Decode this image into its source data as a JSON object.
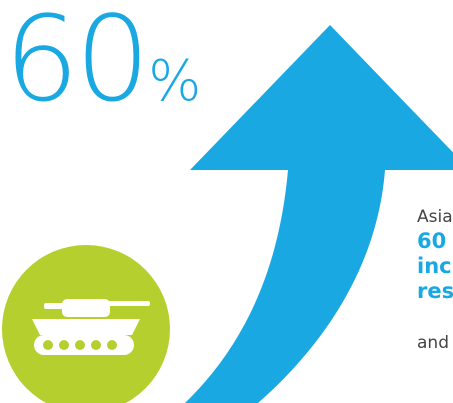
{
  "stat": {
    "number": "60",
    "percent": "%"
  },
  "snippet": {
    "lead": "Asia",
    "highlight_lines": [
      "60",
      "inc",
      "res"
    ],
    "tail": "and"
  },
  "icons": {
    "arrow": "up-arrow-icon",
    "badge": "tank-icon"
  },
  "colors": {
    "accent_blue": "#1aa8e3",
    "badge_green": "#b5cf2f",
    "text_gray": "#444444",
    "background": "#ffffff"
  }
}
